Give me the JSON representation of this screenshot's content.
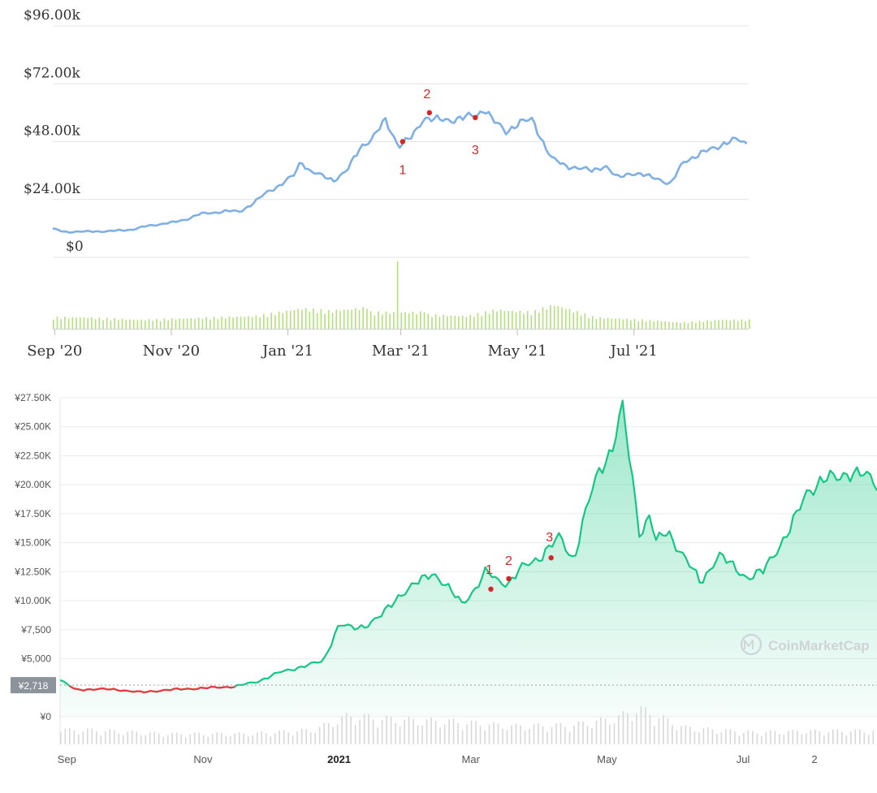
{
  "chart_data": [
    {
      "type": "line",
      "title": "",
      "y_ticks": [
        "$96.00k",
        "$72.00k",
        "$48.00k",
        "$24.00k",
        "$0"
      ],
      "y_tick_values": [
        96000,
        72000,
        48000,
        24000,
        0
      ],
      "ylim": [
        0,
        96000
      ],
      "x_ticks": [
        "Sep '20",
        "Nov '20",
        "Jan '21",
        "Mar '21",
        "May '21",
        "Jul '21"
      ],
      "x_tick_dates": [
        "2020-09-01",
        "2020-11-01",
        "2021-01-01",
        "2021-03-01",
        "2021-05-01",
        "2021-07-01"
      ],
      "x_range": [
        "2020-08-31",
        "2021-08-30"
      ],
      "colors": {
        "line": "#7eb0e6",
        "volume": "#b3e07a",
        "marker": "#d42626",
        "annotation": "#d42626",
        "grid": "#e4e4e4"
      },
      "series": [
        {
          "x": [
            "2020-08-31",
            "2020-09-07",
            "2020-09-14",
            "2020-09-21",
            "2020-09-28",
            "2020-10-05",
            "2020-10-12",
            "2020-10-19",
            "2020-10-26",
            "2020-11-02",
            "2020-11-09",
            "2020-11-16",
            "2020-11-23",
            "2020-11-30",
            "2020-12-07",
            "2020-12-14",
            "2020-12-21",
            "2020-12-28",
            "2021-01-04",
            "2021-01-08",
            "2021-01-12",
            "2021-01-18",
            "2021-01-25",
            "2021-02-01",
            "2021-02-08",
            "2021-02-14",
            "2021-02-21",
            "2021-02-28",
            "2021-03-07",
            "2021-03-13",
            "2021-03-20",
            "2021-03-27",
            "2021-04-03",
            "2021-04-10",
            "2021-04-14",
            "2021-04-18",
            "2021-04-25",
            "2021-05-02",
            "2021-05-09",
            "2021-05-13",
            "2021-05-19",
            "2021-05-26",
            "2021-06-02",
            "2021-06-09",
            "2021-06-16",
            "2021-06-22",
            "2021-06-29",
            "2021-07-06",
            "2021-07-13",
            "2021-07-20",
            "2021-07-27",
            "2021-08-03",
            "2021-08-10",
            "2021-08-17",
            "2021-08-24",
            "2021-08-30"
          ],
          "values": [
            11800,
            10500,
            10600,
            10800,
            10700,
            11200,
            11500,
            13000,
            13700,
            14500,
            15800,
            18000,
            18500,
            19200,
            19000,
            22500,
            27000,
            30000,
            34000,
            40000,
            36000,
            34000,
            32000,
            36000,
            46000,
            49000,
            57000,
            46000,
            50000,
            58000,
            57000,
            57000,
            58000,
            59000,
            62000,
            57000,
            52000,
            56000,
            57000,
            50000,
            41000,
            38000,
            37000,
            36000,
            38000,
            33000,
            35000,
            34000,
            33000,
            30000,
            40000,
            42000,
            45000,
            47000,
            49000,
            47000
          ]
        }
      ],
      "volume": {
        "x": [
          "2020-09-15",
          "2020-10-15",
          "2020-11-15",
          "2020-12-15",
          "2021-01-08",
          "2021-01-22",
          "2021-02-10",
          "2021-02-27",
          "2021-03-15",
          "2021-04-05",
          "2021-04-20",
          "2021-05-08",
          "2021-05-20",
          "2021-06-10",
          "2021-07-05",
          "2021-07-25",
          "2021-08-15"
        ],
        "values": [
          0.18,
          0.14,
          0.17,
          0.2,
          0.32,
          0.28,
          0.33,
          1.0,
          0.22,
          0.2,
          0.3,
          0.26,
          0.38,
          0.18,
          0.14,
          0.1,
          0.14
        ]
      },
      "annotations": [
        {
          "label": "1",
          "x": "2021-03-02",
          "y": 48000
        },
        {
          "label": "2",
          "x": "2021-03-16",
          "y": 60000
        },
        {
          "label": "3",
          "x": "2021-04-09",
          "y": 58000
        }
      ]
    },
    {
      "type": "area",
      "title": "",
      "y_ticks": [
        "¥27.50K",
        "¥25.00K",
        "¥22.50K",
        "¥20.00K",
        "¥17.50K",
        "¥15.00K",
        "¥12.50K",
        "¥10.00K",
        "¥7,500",
        "¥5,000",
        "¥0"
      ],
      "y_tick_values": [
        27500,
        25000,
        22500,
        20000,
        17500,
        15000,
        12500,
        10000,
        7500,
        5000,
        0
      ],
      "ylim": [
        0,
        27500
      ],
      "x_ticks": [
        "Sep",
        "Nov",
        "2021",
        "Mar",
        "May",
        "Jul",
        "2"
      ],
      "x_tick_dates": [
        "2020-09-01",
        "2020-11-01",
        "2021-01-01",
        "2021-03-01",
        "2021-05-01",
        "2021-07-01",
        "2021-08-02"
      ],
      "x_range": [
        "2020-08-29",
        "2021-08-30"
      ],
      "reference_line": {
        "label": "¥2,718",
        "value": 2718
      },
      "watermark": "CoinMarketCap",
      "colors": {
        "line": "#16c784",
        "below_reference": "#ea3943",
        "fill_top": "#16c784",
        "volume": "#d8d8d8",
        "marker": "#d42626",
        "annotation": "#d42626",
        "grid": "#ececec",
        "badge": "#8d939b"
      },
      "series": [
        {
          "x": [
            "2020-08-29",
            "2020-09-05",
            "2020-09-15",
            "2020-09-25",
            "2020-10-05",
            "2020-10-15",
            "2020-10-25",
            "2020-11-05",
            "2020-11-15",
            "2020-11-25",
            "2020-12-05",
            "2020-12-15",
            "2020-12-25",
            "2021-01-01",
            "2021-01-07",
            "2021-01-12",
            "2021-01-20",
            "2021-01-28",
            "2021-02-05",
            "2021-02-12",
            "2021-02-20",
            "2021-02-25",
            "2021-03-03",
            "2021-03-08",
            "2021-03-13",
            "2021-03-18",
            "2021-03-25",
            "2021-04-01",
            "2021-04-05",
            "2021-04-10",
            "2021-04-16",
            "2021-04-22",
            "2021-04-28",
            "2021-05-03",
            "2021-05-08",
            "2021-05-12",
            "2021-05-16",
            "2021-05-20",
            "2021-05-23",
            "2021-05-28",
            "2021-06-04",
            "2021-06-12",
            "2021-06-20",
            "2021-06-26",
            "2021-07-03",
            "2021-07-10",
            "2021-07-18",
            "2021-07-23",
            "2021-07-30",
            "2021-08-06",
            "2021-08-12",
            "2021-08-18",
            "2021-08-24",
            "2021-08-30"
          ],
          "values": [
            3200,
            2300,
            2400,
            2300,
            2100,
            2300,
            2400,
            2500,
            2600,
            3000,
            3800,
            4300,
            4800,
            8000,
            7600,
            7800,
            8700,
            10500,
            11500,
            12500,
            10800,
            9800,
            11000,
            12500,
            11800,
            11500,
            13000,
            13800,
            14500,
            15500,
            13500,
            18000,
            21500,
            23000,
            26500,
            21000,
            15500,
            17500,
            15000,
            16000,
            14000,
            11500,
            14000,
            13000,
            12000,
            12500,
            15000,
            16500,
            19500,
            20500,
            20500,
            21200,
            20800,
            20000
          ]
        }
      ],
      "volume": {
        "x": [
          "2020-09-10",
          "2020-10-15",
          "2020-11-20",
          "2020-12-20",
          "2021-01-05",
          "2021-01-25",
          "2021-02-20",
          "2021-03-20",
          "2021-04-15",
          "2021-05-05",
          "2021-05-15",
          "2021-06-05",
          "2021-07-05",
          "2021-08-05"
        ],
        "values": [
          0.3,
          0.22,
          0.22,
          0.3,
          0.6,
          0.52,
          0.48,
          0.38,
          0.4,
          0.55,
          0.75,
          0.35,
          0.25,
          0.28
        ]
      },
      "annotations": [
        {
          "label": "1",
          "x": "2021-03-10",
          "y": 11000
        },
        {
          "label": "2",
          "x": "2021-03-18",
          "y": 11900
        },
        {
          "label": "3",
          "x": "2021-04-06",
          "y": 13700
        }
      ]
    }
  ]
}
